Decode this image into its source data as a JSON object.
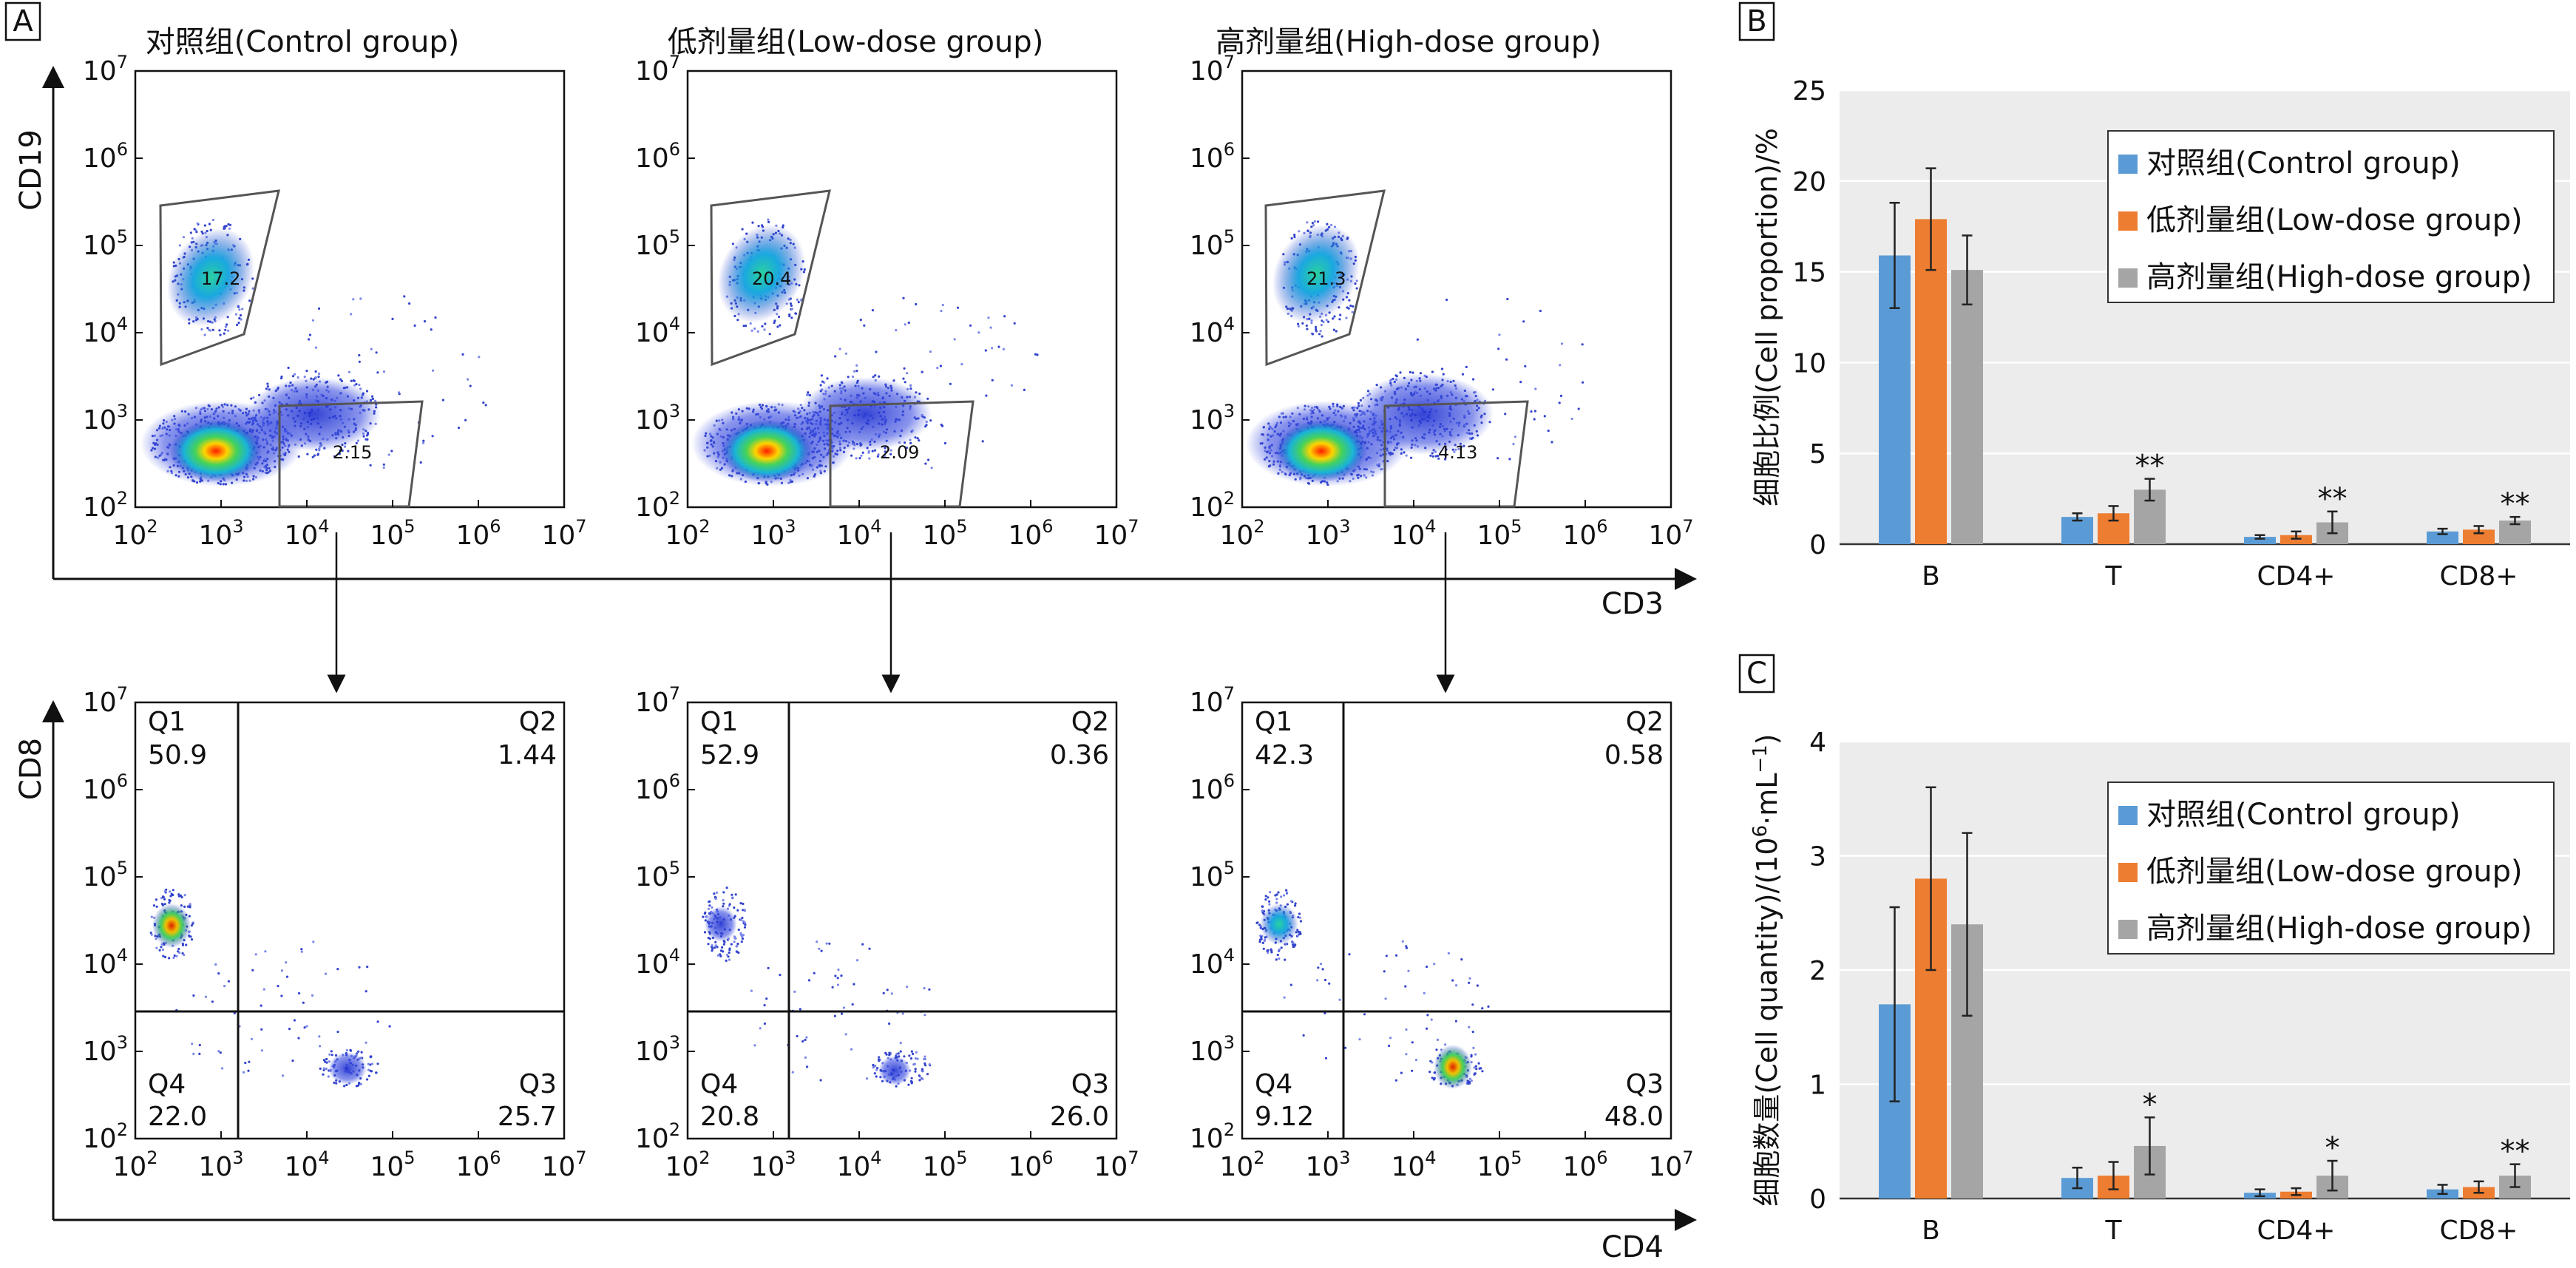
{
  "panel_labels": {
    "a": "A",
    "b": "B",
    "c": "C"
  },
  "flow": {
    "top_titles": [
      "对照组(Control group)",
      "低剂量组(Low-dose group)",
      "高剂量组(High-dose group)"
    ],
    "top_y_label": "CD19",
    "top_x_label": "CD3",
    "bottom_y_label": "CD8",
    "bottom_x_label": "CD4",
    "log_ticks": [
      "2",
      "3",
      "4",
      "5",
      "6",
      "7"
    ],
    "tick_base": "10",
    "gate_values": [
      {
        "b": "17.2",
        "t": "2.15"
      },
      {
        "b": "20.4",
        "t": "2.09"
      },
      {
        "b": "21.3",
        "t": "4.13"
      }
    ],
    "quadrant_labels": [
      "Q1",
      "Q2",
      "Q3",
      "Q4"
    ],
    "quadrants": [
      {
        "q1": "50.9",
        "q2": "1.44",
        "q3": "25.7",
        "q4": "22.0"
      },
      {
        "q1": "52.9",
        "q2": "0.36",
        "q3": "26.0",
        "q4": "20.8"
      },
      {
        "q1": "42.3",
        "q2": "0.58",
        "q3": "48.0",
        "q4": "9.12"
      }
    ]
  },
  "colors": {
    "control": "#5B9BD5",
    "low": "#ED7D31",
    "high": "#A5A5A5",
    "plot_bg": "#ECECEC"
  },
  "chart_data": [
    {
      "type": "bar",
      "panel": "B",
      "categories": [
        "B",
        "T",
        "CD4+",
        "CD8+"
      ],
      "ylabel": "细胞比例(Cell proportion)/%",
      "ylim": [
        0,
        25
      ],
      "yticks": [
        "0",
        "5",
        "10",
        "15",
        "20",
        "25"
      ],
      "legend": "top-right",
      "series": [
        {
          "name": "对照组(Control group)",
          "values": [
            15.9,
            1.5,
            0.4,
            0.7
          ],
          "errors": [
            2.9,
            0.2,
            0.1,
            0.15
          ]
        },
        {
          "name": "低剂量组(Low-dose group)",
          "values": [
            17.9,
            1.7,
            0.5,
            0.8
          ],
          "errors": [
            2.8,
            0.4,
            0.2,
            0.2
          ]
        },
        {
          "name": "高剂量组(High-dose group)",
          "values": [
            15.1,
            3.0,
            1.2,
            1.3
          ],
          "errors": [
            1.9,
            0.6,
            0.6,
            0.2
          ]
        }
      ],
      "annotations": [
        "",
        "**",
        "**",
        "**"
      ]
    },
    {
      "type": "bar",
      "panel": "C",
      "categories": [
        "B",
        "T",
        "CD4+",
        "CD8+"
      ],
      "ylabel_main": "细胞数量(Cell quantity)/(10",
      "ylabel_sup1": "6",
      "ylabel_mid": "·mL",
      "ylabel_sup2": "−1",
      "ylabel_end": ")",
      "ylim": [
        0,
        4
      ],
      "yticks": [
        "0",
        "1",
        "2",
        "3",
        "4"
      ],
      "legend": "top-right",
      "series": [
        {
          "name": "对照组(Control group)",
          "values": [
            1.7,
            0.18,
            0.05,
            0.08
          ],
          "errors": [
            0.85,
            0.09,
            0.03,
            0.04
          ]
        },
        {
          "name": "低剂量组(Low-dose group)",
          "values": [
            2.8,
            0.2,
            0.06,
            0.1
          ],
          "errors": [
            0.8,
            0.12,
            0.03,
            0.05
          ]
        },
        {
          "name": "高剂量组(High-dose group)",
          "values": [
            2.4,
            0.46,
            0.2,
            0.2
          ],
          "errors": [
            0.8,
            0.25,
            0.13,
            0.1
          ]
        }
      ],
      "annotations": [
        "",
        "*",
        "*",
        "**"
      ]
    }
  ]
}
